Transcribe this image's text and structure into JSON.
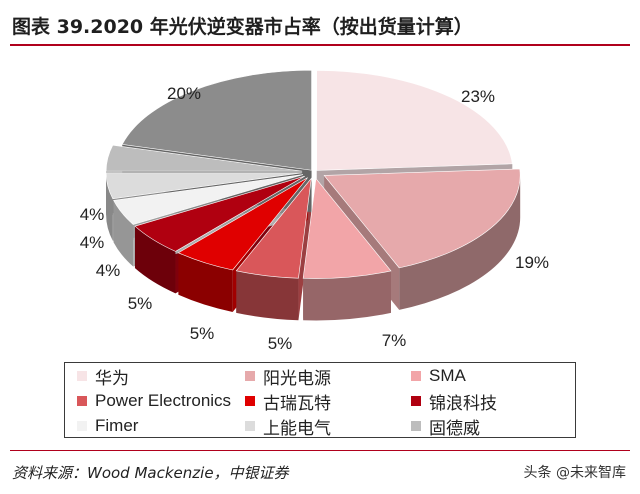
{
  "title": "图表 39.2020 年光伏逆变器市占率（按出货量计算）",
  "source": "资料来源：Wood Mackenzie，中银证券",
  "watermark": "头条 @未来智库",
  "chart_data": {
    "type": "pie",
    "title": "图表 39.2020 年光伏逆变器市占率（按出货量计算）",
    "style": "3d-exploded",
    "legend_position": "bottom",
    "slices": [
      {
        "label": "华为",
        "value": 23,
        "display": "23%",
        "color": "#f7e4e6"
      },
      {
        "label": "阳光电源",
        "value": 19,
        "display": "19%",
        "color": "#e6a9ab"
      },
      {
        "label": "SMA",
        "value": 7,
        "display": "7%",
        "color": "#f2a5a8"
      },
      {
        "label": "Power Electronics",
        "value": 5,
        "display": "5%",
        "color": "#d9575a"
      },
      {
        "label": "古瑞瓦特",
        "value": 5,
        "display": "5%",
        "color": "#e00000"
      },
      {
        "label": "锦浪科技",
        "value": 5,
        "display": "5%",
        "color": "#b00010"
      },
      {
        "label": "Fimer",
        "value": 4,
        "display": "4%",
        "color": "#f2f2f2"
      },
      {
        "label": "上能电气",
        "value": 4,
        "display": "4%",
        "color": "#dcdcdc"
      },
      {
        "label": "固德威",
        "value": 4,
        "display": "4%",
        "color": "#bdbdbd"
      },
      {
        "label": "",
        "value": 20,
        "display": "20%",
        "color": "#8c8c8c"
      }
    ]
  }
}
